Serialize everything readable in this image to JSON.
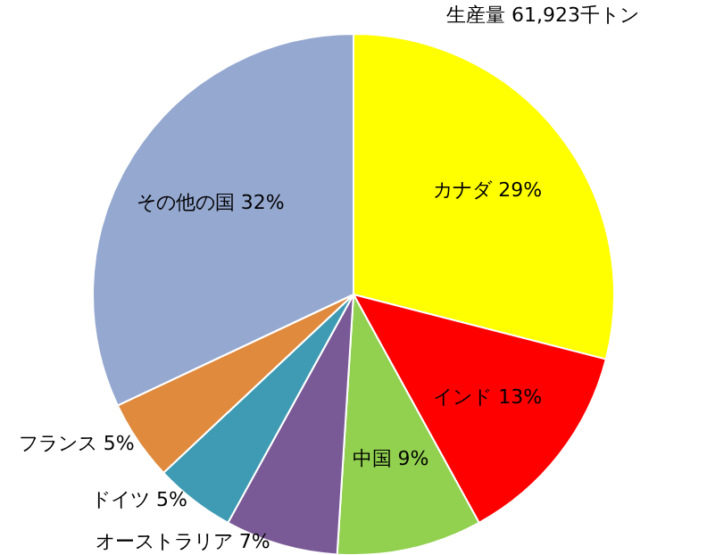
{
  "chart_data": {
    "type": "pie",
    "categories": [
      "カナダ",
      "インド",
      "中国",
      "オーストラリア",
      "ドイツ",
      "フランス",
      "その他の国"
    ],
    "values": [
      29,
      13,
      9,
      7,
      5,
      5,
      32
    ],
    "value_labels": [
      "29%",
      "13%",
      "9%",
      "7%",
      "5%",
      "5%",
      "32%"
    ],
    "colors": [
      "#ffff00",
      "#ff0000",
      "#92d050",
      "#7a5a96",
      "#3f9bb3",
      "#e08a3e",
      "#95a8d0"
    ],
    "annotations": [
      "生産量 61,923千トン"
    ]
  }
}
